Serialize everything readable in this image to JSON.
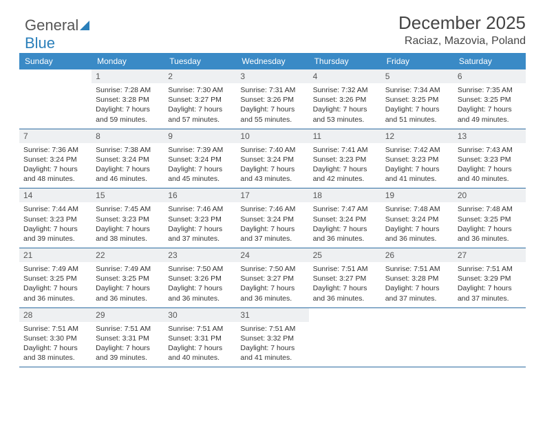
{
  "brand": {
    "part1": "General",
    "part2": "Blue"
  },
  "title": "December 2025",
  "location": "Raciaz, Mazovia, Poland",
  "headers": [
    "Sunday",
    "Monday",
    "Tuesday",
    "Wednesday",
    "Thursday",
    "Friday",
    "Saturday"
  ],
  "colors": {
    "header_bg": "#3a8ac6",
    "header_fg": "#ffffff",
    "daynum_bg": "#eef0f2",
    "row_border": "#2a6aa0",
    "brand_blue": "#2a7fba"
  },
  "weeks": [
    [
      {
        "n": "",
        "sr": "",
        "ss": "",
        "d1": "",
        "d2": "",
        "empty": true
      },
      {
        "n": "1",
        "sr": "Sunrise: 7:28 AM",
        "ss": "Sunset: 3:28 PM",
        "d1": "Daylight: 7 hours",
        "d2": "and 59 minutes."
      },
      {
        "n": "2",
        "sr": "Sunrise: 7:30 AM",
        "ss": "Sunset: 3:27 PM",
        "d1": "Daylight: 7 hours",
        "d2": "and 57 minutes."
      },
      {
        "n": "3",
        "sr": "Sunrise: 7:31 AM",
        "ss": "Sunset: 3:26 PM",
        "d1": "Daylight: 7 hours",
        "d2": "and 55 minutes."
      },
      {
        "n": "4",
        "sr": "Sunrise: 7:32 AM",
        "ss": "Sunset: 3:26 PM",
        "d1": "Daylight: 7 hours",
        "d2": "and 53 minutes."
      },
      {
        "n": "5",
        "sr": "Sunrise: 7:34 AM",
        "ss": "Sunset: 3:25 PM",
        "d1": "Daylight: 7 hours",
        "d2": "and 51 minutes."
      },
      {
        "n": "6",
        "sr": "Sunrise: 7:35 AM",
        "ss": "Sunset: 3:25 PM",
        "d1": "Daylight: 7 hours",
        "d2": "and 49 minutes."
      }
    ],
    [
      {
        "n": "7",
        "sr": "Sunrise: 7:36 AM",
        "ss": "Sunset: 3:24 PM",
        "d1": "Daylight: 7 hours",
        "d2": "and 48 minutes."
      },
      {
        "n": "8",
        "sr": "Sunrise: 7:38 AM",
        "ss": "Sunset: 3:24 PM",
        "d1": "Daylight: 7 hours",
        "d2": "and 46 minutes."
      },
      {
        "n": "9",
        "sr": "Sunrise: 7:39 AM",
        "ss": "Sunset: 3:24 PM",
        "d1": "Daylight: 7 hours",
        "d2": "and 45 minutes."
      },
      {
        "n": "10",
        "sr": "Sunrise: 7:40 AM",
        "ss": "Sunset: 3:24 PM",
        "d1": "Daylight: 7 hours",
        "d2": "and 43 minutes."
      },
      {
        "n": "11",
        "sr": "Sunrise: 7:41 AM",
        "ss": "Sunset: 3:23 PM",
        "d1": "Daylight: 7 hours",
        "d2": "and 42 minutes."
      },
      {
        "n": "12",
        "sr": "Sunrise: 7:42 AM",
        "ss": "Sunset: 3:23 PM",
        "d1": "Daylight: 7 hours",
        "d2": "and 41 minutes."
      },
      {
        "n": "13",
        "sr": "Sunrise: 7:43 AM",
        "ss": "Sunset: 3:23 PM",
        "d1": "Daylight: 7 hours",
        "d2": "and 40 minutes."
      }
    ],
    [
      {
        "n": "14",
        "sr": "Sunrise: 7:44 AM",
        "ss": "Sunset: 3:23 PM",
        "d1": "Daylight: 7 hours",
        "d2": "and 39 minutes."
      },
      {
        "n": "15",
        "sr": "Sunrise: 7:45 AM",
        "ss": "Sunset: 3:23 PM",
        "d1": "Daylight: 7 hours",
        "d2": "and 38 minutes."
      },
      {
        "n": "16",
        "sr": "Sunrise: 7:46 AM",
        "ss": "Sunset: 3:23 PM",
        "d1": "Daylight: 7 hours",
        "d2": "and 37 minutes."
      },
      {
        "n": "17",
        "sr": "Sunrise: 7:46 AM",
        "ss": "Sunset: 3:24 PM",
        "d1": "Daylight: 7 hours",
        "d2": "and 37 minutes."
      },
      {
        "n": "18",
        "sr": "Sunrise: 7:47 AM",
        "ss": "Sunset: 3:24 PM",
        "d1": "Daylight: 7 hours",
        "d2": "and 36 minutes."
      },
      {
        "n": "19",
        "sr": "Sunrise: 7:48 AM",
        "ss": "Sunset: 3:24 PM",
        "d1": "Daylight: 7 hours",
        "d2": "and 36 minutes."
      },
      {
        "n": "20",
        "sr": "Sunrise: 7:48 AM",
        "ss": "Sunset: 3:25 PM",
        "d1": "Daylight: 7 hours",
        "d2": "and 36 minutes."
      }
    ],
    [
      {
        "n": "21",
        "sr": "Sunrise: 7:49 AM",
        "ss": "Sunset: 3:25 PM",
        "d1": "Daylight: 7 hours",
        "d2": "and 36 minutes."
      },
      {
        "n": "22",
        "sr": "Sunrise: 7:49 AM",
        "ss": "Sunset: 3:25 PM",
        "d1": "Daylight: 7 hours",
        "d2": "and 36 minutes."
      },
      {
        "n": "23",
        "sr": "Sunrise: 7:50 AM",
        "ss": "Sunset: 3:26 PM",
        "d1": "Daylight: 7 hours",
        "d2": "and 36 minutes."
      },
      {
        "n": "24",
        "sr": "Sunrise: 7:50 AM",
        "ss": "Sunset: 3:27 PM",
        "d1": "Daylight: 7 hours",
        "d2": "and 36 minutes."
      },
      {
        "n": "25",
        "sr": "Sunrise: 7:51 AM",
        "ss": "Sunset: 3:27 PM",
        "d1": "Daylight: 7 hours",
        "d2": "and 36 minutes."
      },
      {
        "n": "26",
        "sr": "Sunrise: 7:51 AM",
        "ss": "Sunset: 3:28 PM",
        "d1": "Daylight: 7 hours",
        "d2": "and 37 minutes."
      },
      {
        "n": "27",
        "sr": "Sunrise: 7:51 AM",
        "ss": "Sunset: 3:29 PM",
        "d1": "Daylight: 7 hours",
        "d2": "and 37 minutes."
      }
    ],
    [
      {
        "n": "28",
        "sr": "Sunrise: 7:51 AM",
        "ss": "Sunset: 3:30 PM",
        "d1": "Daylight: 7 hours",
        "d2": "and 38 minutes."
      },
      {
        "n": "29",
        "sr": "Sunrise: 7:51 AM",
        "ss": "Sunset: 3:31 PM",
        "d1": "Daylight: 7 hours",
        "d2": "and 39 minutes."
      },
      {
        "n": "30",
        "sr": "Sunrise: 7:51 AM",
        "ss": "Sunset: 3:31 PM",
        "d1": "Daylight: 7 hours",
        "d2": "and 40 minutes."
      },
      {
        "n": "31",
        "sr": "Sunrise: 7:51 AM",
        "ss": "Sunset: 3:32 PM",
        "d1": "Daylight: 7 hours",
        "d2": "and 41 minutes."
      },
      {
        "n": "",
        "sr": "",
        "ss": "",
        "d1": "",
        "d2": "",
        "empty": true
      },
      {
        "n": "",
        "sr": "",
        "ss": "",
        "d1": "",
        "d2": "",
        "empty": true
      },
      {
        "n": "",
        "sr": "",
        "ss": "",
        "d1": "",
        "d2": "",
        "empty": true
      }
    ]
  ]
}
